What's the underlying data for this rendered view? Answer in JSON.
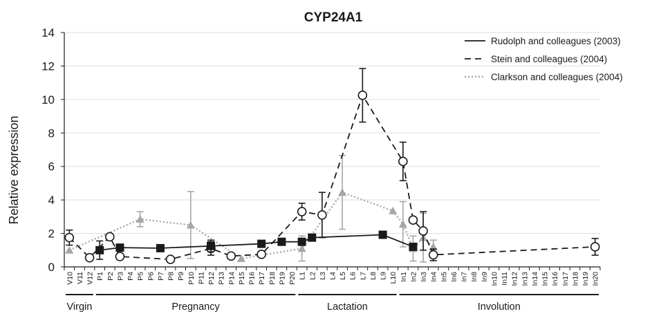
{
  "chart_data": {
    "type": "line",
    "title": "CYP24A1",
    "xlabel": "",
    "ylabel": "Relative expression",
    "ylim": [
      0,
      14
    ],
    "yticks": [
      0,
      2,
      4,
      6,
      8,
      10,
      12,
      14
    ],
    "grid": true,
    "legend_position": "top-right",
    "categories": [
      "V10",
      "V11",
      "V12",
      "P1",
      "P2",
      "P3",
      "P4",
      "P5",
      "P6",
      "P7",
      "P8",
      "P9",
      "P10",
      "P11",
      "P12",
      "P13",
      "P14",
      "P15",
      "P16",
      "P17",
      "P18",
      "P19",
      "P20",
      "L1",
      "L2",
      "L3",
      "L4",
      "L5",
      "L6",
      "L7",
      "L8",
      "L9",
      "L10",
      "In1",
      "In2",
      "In3",
      "In4",
      "In5",
      "In6",
      "In7",
      "In8",
      "In9",
      "In10",
      "In11",
      "In12",
      "In13",
      "In14",
      "In15",
      "In16",
      "In17",
      "In18",
      "In19",
      "In20"
    ],
    "phases": [
      {
        "name": "Virgin",
        "from": "V10",
        "to": "V12"
      },
      {
        "name": "Pregnancy",
        "from": "P1",
        "to": "P20"
      },
      {
        "name": "Lactation",
        "from": "L1",
        "to": "L10"
      },
      {
        "name": "Involution",
        "from": "In1",
        "to": "In20"
      }
    ],
    "series": [
      {
        "name": "Rudolph and colleagues (2003)",
        "line_style": "solid",
        "marker": "filled-square",
        "color": "#1a1a1a",
        "points": [
          {
            "x": "P1",
            "y": 1.0,
            "err": 0.55
          },
          {
            "x": "P3",
            "y": 1.15
          },
          {
            "x": "P7",
            "y": 1.12
          },
          {
            "x": "P12",
            "y": 1.25,
            "err": 0.35
          },
          {
            "x": "P17",
            "y": 1.38
          },
          {
            "x": "P19",
            "y": 1.5
          },
          {
            "x": "L1",
            "y": 1.5
          },
          {
            "x": "L2",
            "y": 1.75
          },
          {
            "x": "L9",
            "y": 1.92
          },
          {
            "x": "In2",
            "y": 1.2
          }
        ]
      },
      {
        "name": "Stein and colleagues (2004)",
        "line_style": "dashed",
        "marker": "open-circle",
        "color": "#1a1a1a",
        "points": [
          {
            "x": "V10",
            "y": 1.75,
            "err": 0.45
          },
          {
            "x": "V12",
            "y": 0.55
          },
          {
            "x": "P2",
            "y": 1.8
          },
          {
            "x": "P3",
            "y": 0.62
          },
          {
            "x": "P8",
            "y": 0.45
          },
          {
            "x": "P12",
            "y": 1.1,
            "err": 0.4
          },
          {
            "x": "P14",
            "y": 0.65
          },
          {
            "x": "P17",
            "y": 0.75
          },
          {
            "x": "L1",
            "y": 3.3,
            "err": 0.5
          },
          {
            "x": "L3",
            "y": 3.1,
            "err": 1.35
          },
          {
            "x": "L7",
            "y": 10.25,
            "err": 1.6
          },
          {
            "x": "In1",
            "y": 6.3,
            "err": 1.15
          },
          {
            "x": "In2",
            "y": 2.8
          },
          {
            "x": "In3",
            "y": 2.15,
            "err": 1.15
          },
          {
            "x": "In4",
            "y": 0.72,
            "err": 0.35
          },
          {
            "x": "In20",
            "y": 1.2,
            "err": 0.5
          }
        ]
      },
      {
        "name": "Clarkson and colleagues (2004)",
        "line_style": "dotted",
        "marker": "filled-triangle",
        "color": "#a6a6a6",
        "points": [
          {
            "x": "V10",
            "y": 1.0
          },
          {
            "x": "P5",
            "y": 2.85,
            "err": 0.45
          },
          {
            "x": "P10",
            "y": 2.5,
            "err": 2.0
          },
          {
            "x": "P15",
            "y": 0.5
          },
          {
            "x": "L1",
            "y": 1.1,
            "err": 0.75
          },
          {
            "x": "L5",
            "y": 4.45,
            "err": 2.2
          },
          {
            "x": "L10",
            "y": 3.35
          },
          {
            "x": "In1",
            "y": 2.55,
            "err": 1.35
          },
          {
            "x": "In2",
            "y": 1.1,
            "err": 0.75
          },
          {
            "x": "In3",
            "y": 1.75,
            "err": 1.45
          },
          {
            "x": "In4",
            "y": 1.2,
            "err": 0.4
          }
        ]
      }
    ]
  }
}
